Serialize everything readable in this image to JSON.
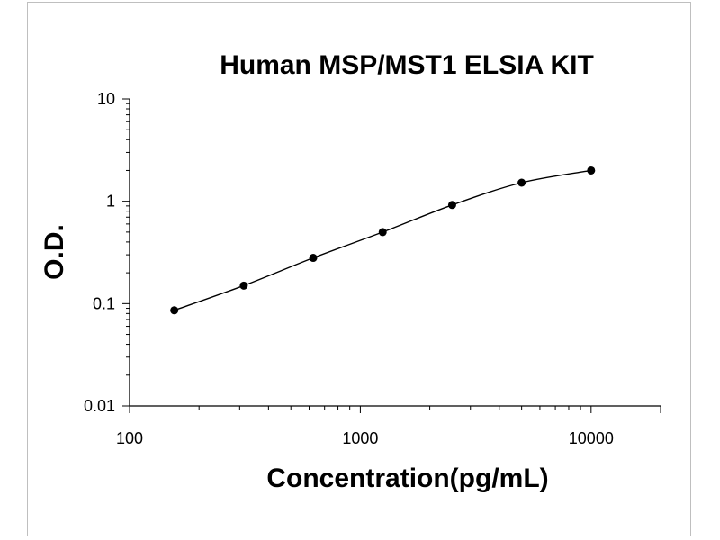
{
  "chart_data": {
    "type": "scatter",
    "title": "Human MSP/MST1 ELSIA KIT",
    "xlabel": "Concentration(pg/mL)",
    "ylabel": "O.D.",
    "x_scale": "log",
    "y_scale": "log",
    "xlim": [
      100,
      20000
    ],
    "ylim": [
      0.01,
      10
    ],
    "x_tick_labels": [
      "100",
      "1000",
      "10000"
    ],
    "y_tick_labels": [
      "10",
      "1",
      "0.1",
      "0.01"
    ],
    "grid": false,
    "series": [
      {
        "x": [
          156.25,
          312.5,
          625,
          1250,
          2500,
          5000,
          10000
        ],
        "y": [
          0.086,
          0.15,
          0.28,
          0.5,
          0.92,
          1.52,
          2.0
        ],
        "fit_curve": true
      }
    ]
  }
}
